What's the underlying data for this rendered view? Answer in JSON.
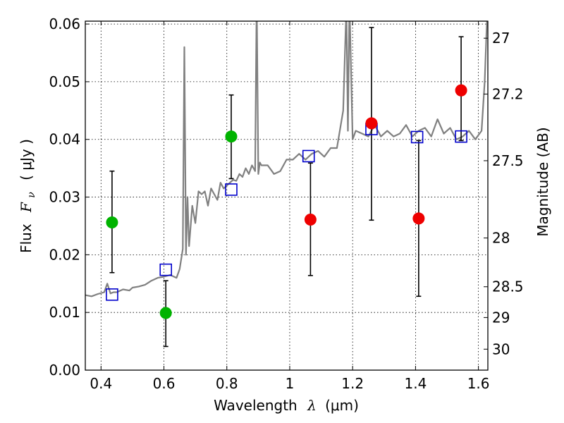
{
  "chart_data": {
    "type": "scatter",
    "x_axis": {
      "label_text": "Wavelength",
      "label_symbol": "λ",
      "label_unit": "(μm)",
      "range": [
        0.35,
        1.63
      ],
      "ticks": [
        0.4,
        0.6,
        0.8,
        1.0,
        1.2,
        1.4,
        1.6
      ],
      "tick_labels": [
        "0.4",
        "0.6",
        "0.8",
        "1",
        "1.2",
        "1.4",
        "1.6"
      ]
    },
    "y_axis_left": {
      "label_text": "Flux",
      "label_symbol": "F",
      "label_subscript": "ν",
      "label_unit": "( μJy )",
      "range": [
        0.0,
        0.0605
      ],
      "ticks": [
        0.0,
        0.01,
        0.02,
        0.03,
        0.04,
        0.05,
        0.06
      ],
      "tick_labels": [
        "0.00",
        "0.01",
        "0.02",
        "0.03",
        "0.04",
        "0.05",
        "0.06"
      ]
    },
    "y_axis_right": {
      "label": "Magnitude (AB)",
      "scale": "AB magnitude",
      "ticks": [
        27,
        27.2,
        27.5,
        28,
        28.5,
        29,
        30
      ],
      "tick_labels": [
        "27",
        "27.2",
        "27.5",
        "28",
        "28.5",
        "29",
        "30"
      ]
    },
    "grid": true,
    "series": [
      {
        "kind": "spectrum",
        "color": "#808080",
        "x": [
          0.35,
          0.37,
          0.39,
          0.41,
          0.42,
          0.43,
          0.44,
          0.45,
          0.47,
          0.49,
          0.5,
          0.52,
          0.54,
          0.56,
          0.58,
          0.6,
          0.62,
          0.64,
          0.65,
          0.66,
          0.665,
          0.67,
          0.675,
          0.68,
          0.69,
          0.7,
          0.71,
          0.72,
          0.73,
          0.74,
          0.75,
          0.76,
          0.77,
          0.78,
          0.79,
          0.8,
          0.81,
          0.82,
          0.83,
          0.84,
          0.85,
          0.86,
          0.87,
          0.88,
          0.89,
          0.895,
          0.9,
          0.905,
          0.91,
          0.93,
          0.95,
          0.97,
          0.99,
          1.01,
          1.03,
          1.05,
          1.07,
          1.09,
          1.11,
          1.13,
          1.15,
          1.17,
          1.18,
          1.185,
          1.19,
          1.2,
          1.21,
          1.23,
          1.25,
          1.27,
          1.29,
          1.31,
          1.33,
          1.35,
          1.37,
          1.39,
          1.41,
          1.43,
          1.45,
          1.47,
          1.49,
          1.51,
          1.53,
          1.55,
          1.57,
          1.59,
          1.61,
          1.62,
          1.63
        ],
        "y": [
          0.013,
          0.0128,
          0.0132,
          0.0135,
          0.015,
          0.0133,
          0.0135,
          0.0135,
          0.014,
          0.0138,
          0.0143,
          0.0145,
          0.0148,
          0.0155,
          0.016,
          0.0162,
          0.0165,
          0.016,
          0.0175,
          0.021,
          0.056,
          0.02,
          0.03,
          0.0215,
          0.0285,
          0.0255,
          0.031,
          0.0305,
          0.031,
          0.0285,
          0.0315,
          0.0305,
          0.0295,
          0.0325,
          0.0315,
          0.032,
          0.0325,
          0.033,
          0.0328,
          0.034,
          0.0335,
          0.035,
          0.034,
          0.0355,
          0.0345,
          0.065,
          0.034,
          0.036,
          0.0355,
          0.0355,
          0.034,
          0.0345,
          0.0365,
          0.0365,
          0.0375,
          0.0365,
          0.0375,
          0.038,
          0.037,
          0.0385,
          0.0385,
          0.045,
          0.063,
          0.0415,
          0.064,
          0.04,
          0.0415,
          0.041,
          0.0405,
          0.0425,
          0.0405,
          0.0415,
          0.0405,
          0.041,
          0.0425,
          0.0405,
          0.0415,
          0.042,
          0.0405,
          0.0435,
          0.041,
          0.042,
          0.04,
          0.0405,
          0.0415,
          0.04,
          0.0415,
          0.05,
          0.065
        ]
      },
      {
        "kind": "model_photometry",
        "marker": "open-square",
        "color": "#0000cc",
        "x": [
          0.435,
          0.606,
          0.814,
          1.06,
          1.26,
          1.405,
          1.545
        ],
        "y": [
          0.0131,
          0.0174,
          0.0313,
          0.0371,
          0.0418,
          0.0404,
          0.0405
        ]
      },
      {
        "kind": "observed_detection",
        "marker": "filled-circle",
        "color": "#00b300",
        "x": [
          0.435,
          0.606,
          0.814
        ],
        "y": [
          0.0256,
          0.0099,
          0.0405
        ],
        "yerr_low": [
          0.0169,
          0.0041,
          0.0332
        ],
        "yerr_high": [
          0.0345,
          0.0155,
          0.0477
        ]
      },
      {
        "kind": "observed_detection",
        "marker": "filled-circle",
        "color": "#ee0000",
        "x": [
          1.066,
          1.26,
          1.41,
          1.545
        ],
        "y": [
          0.0261,
          0.0428,
          0.0263,
          0.0485
        ],
        "yerr_low": [
          0.0164,
          0.026,
          0.0128,
          0.0398
        ],
        "yerr_high": [
          0.0359,
          0.0594,
          0.0398,
          0.0578
        ]
      }
    ]
  }
}
